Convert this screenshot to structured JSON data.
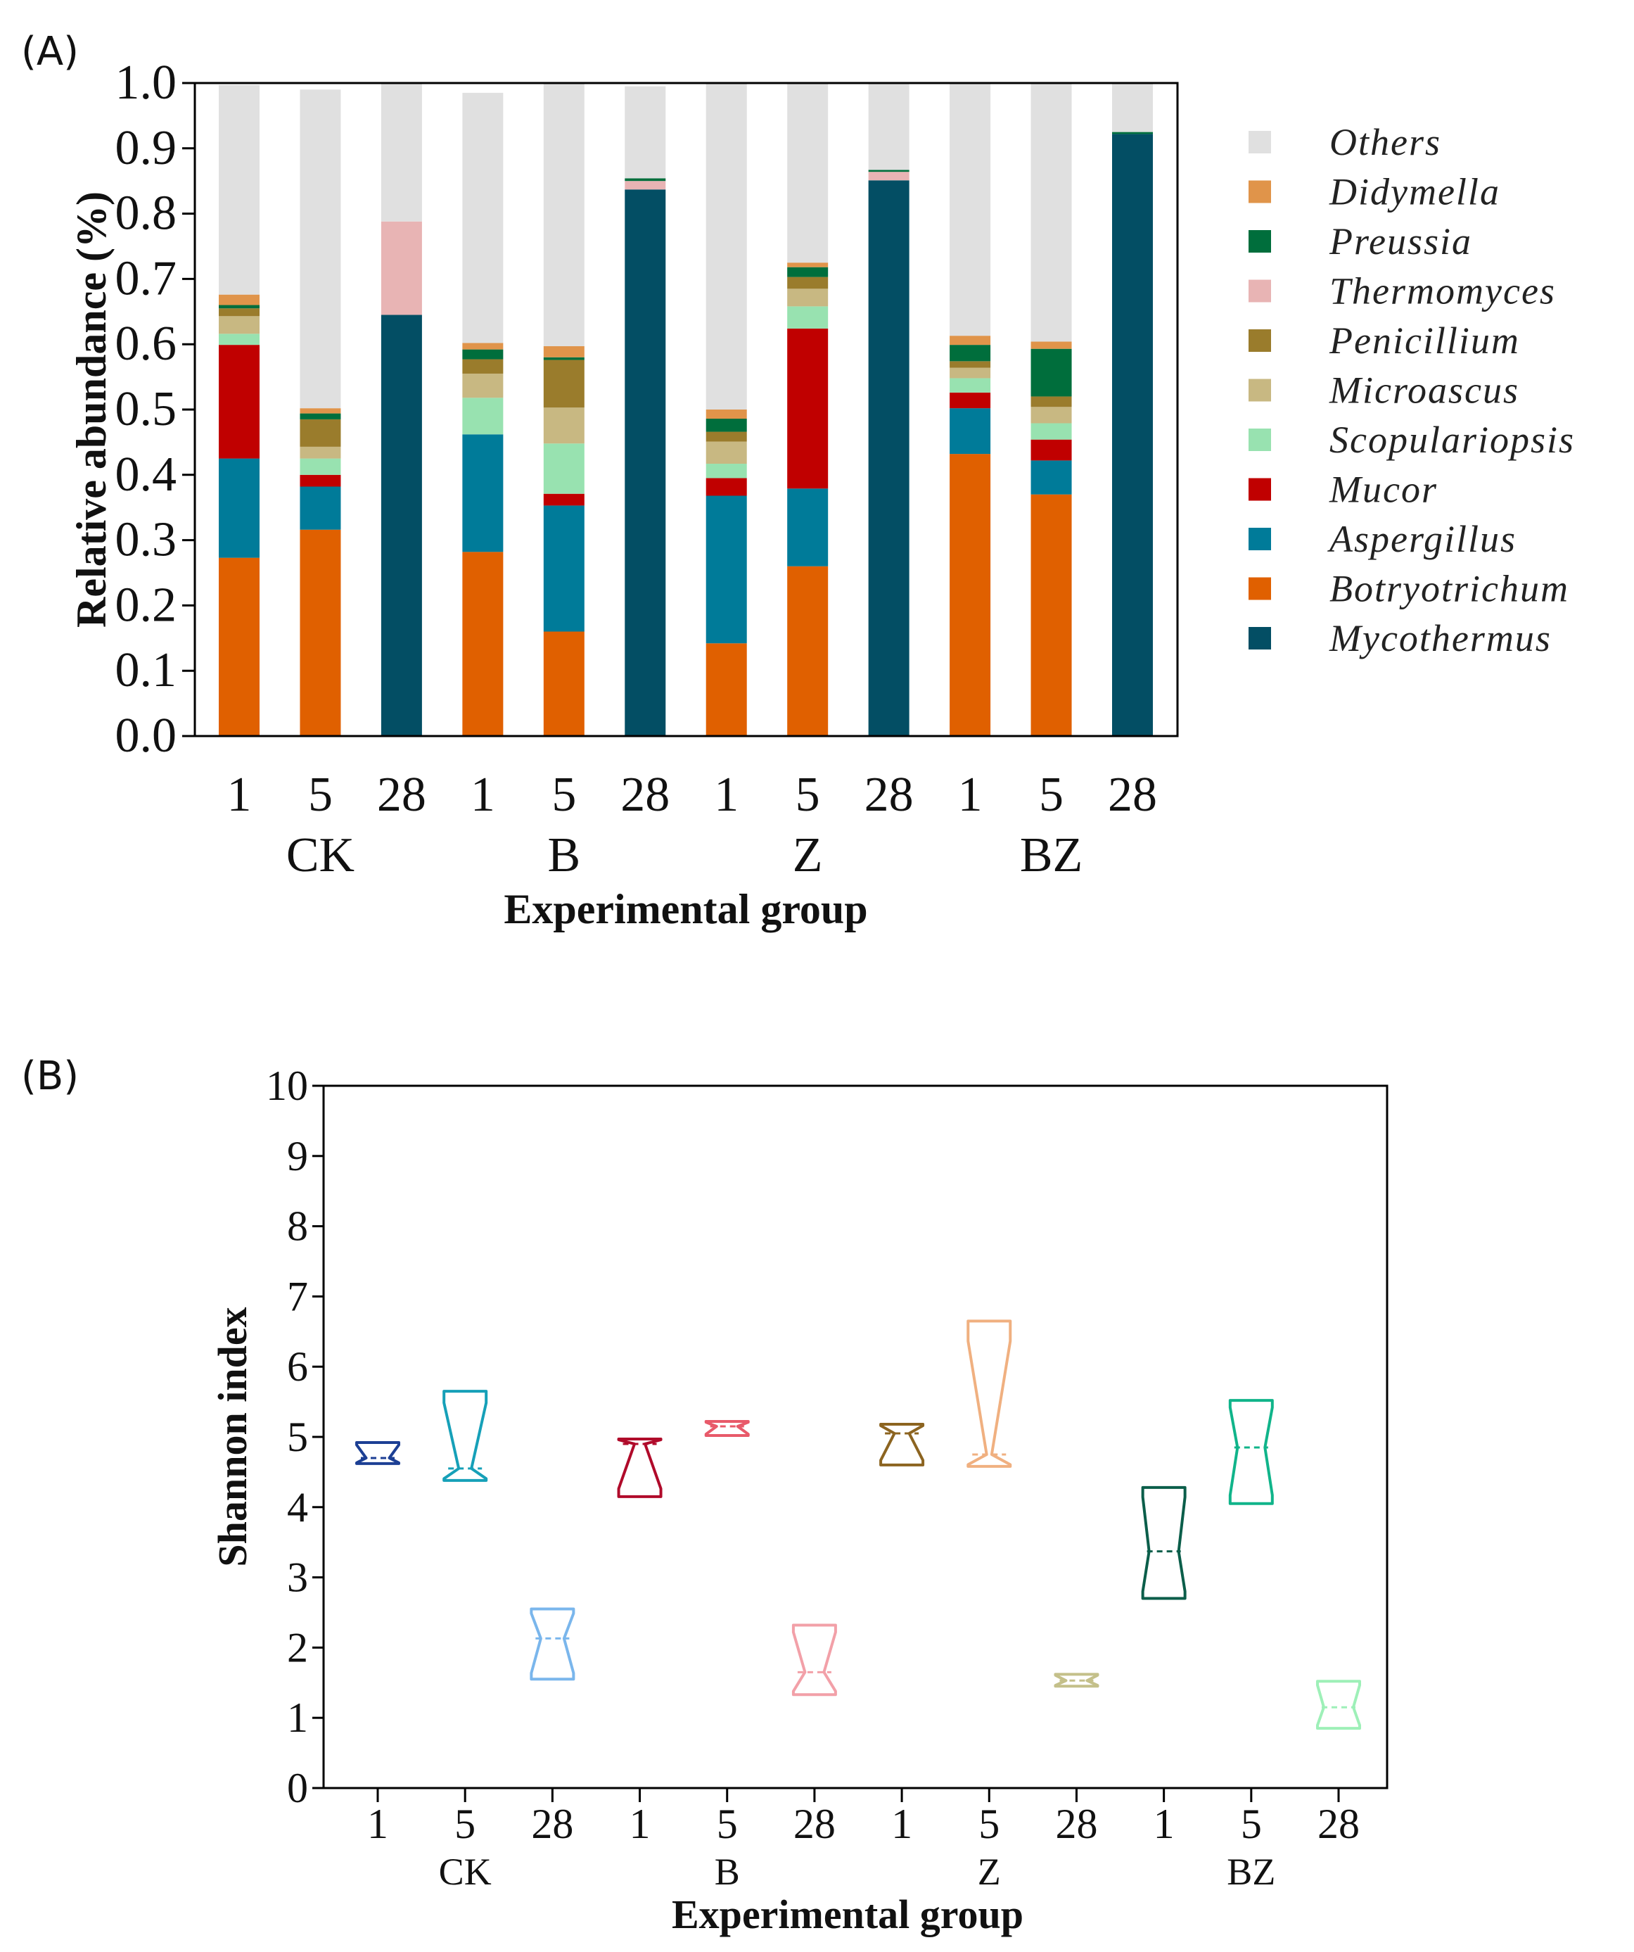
{
  "chart_data": [
    {
      "panel": "(A)",
      "type": "bar",
      "stacked": true,
      "ylabel": "Relative abundance (%)",
      "xlabel": "Experimental group",
      "ylim": [
        0,
        1.0
      ],
      "yticks": [
        "0.0",
        "0.1",
        "0.2",
        "0.3",
        "0.4",
        "0.5",
        "0.6",
        "0.7",
        "0.8",
        "0.9",
        "1.0"
      ],
      "groups": [
        "CK",
        "B",
        "Z",
        "BZ"
      ],
      "days": [
        "1",
        "5",
        "28"
      ],
      "legend_position": "right",
      "series": [
        {
          "name": "Mycothermus",
          "color": "#034e64",
          "values": [
            0,
            0,
            0.645,
            0,
            0,
            0.837,
            0,
            0,
            0.851,
            0,
            0,
            0.922
          ]
        },
        {
          "name": "Botryotrichum",
          "color": "#e06000",
          "values": [
            0.273,
            0.316,
            0,
            0.282,
            0.16,
            0,
            0.142,
            0.26,
            0,
            0.432,
            0.37,
            0
          ]
        },
        {
          "name": "Aspergillus",
          "color": "#007b99",
          "values": [
            0.152,
            0.066,
            0,
            0.18,
            0.193,
            0,
            0.226,
            0.119,
            0,
            0.07,
            0.052,
            0
          ]
        },
        {
          "name": "Mucor",
          "color": "#c00000",
          "values": [
            0.174,
            0.018,
            0,
            0,
            0.018,
            0,
            0.027,
            0.245,
            0,
            0.024,
            0.032,
            0
          ]
        },
        {
          "name": "Scopulariopsis",
          "color": "#98e2b0",
          "values": [
            0.017,
            0.025,
            0,
            0.056,
            0.077,
            0,
            0.022,
            0.034,
            0,
            0.022,
            0.025,
            0
          ]
        },
        {
          "name": "Microascus",
          "color": "#c8b882",
          "values": [
            0.027,
            0.018,
            0,
            0.037,
            0.055,
            0,
            0.034,
            0.027,
            0,
            0.016,
            0.025,
            0
          ]
        },
        {
          "name": "Penicillium",
          "color": "#9a7c2c",
          "values": [
            0.012,
            0.042,
            0,
            0.022,
            0.073,
            0,
            0.015,
            0.018,
            0,
            0.01,
            0.016,
            0
          ]
        },
        {
          "name": "Thermomyces",
          "color": "#e8b4b4",
          "values": [
            0,
            0,
            0.143,
            0,
            0,
            0.013,
            0,
            0,
            0.013,
            0,
            0,
            0
          ]
        },
        {
          "name": "Preussia",
          "color": "#006e3c",
          "values": [
            0.005,
            0.009,
            0,
            0.015,
            0.004,
            0.004,
            0.02,
            0.015,
            0.003,
            0.025,
            0.073,
            0.003
          ]
        },
        {
          "name": "Didymella",
          "color": "#e0944a",
          "values": [
            0.016,
            0.008,
            0,
            0.01,
            0.017,
            0,
            0.014,
            0.007,
            0,
            0.014,
            0.011,
            0
          ]
        },
        {
          "name": "Others",
          "color": "#e0e0e0",
          "values": [
            0.321,
            0.488,
            0.212,
            0.383,
            0.403,
            0.141,
            0.5,
            0.275,
            0.133,
            0.387,
            0.396,
            0.075
          ]
        }
      ],
      "legend_order": [
        "Others",
        "Didymella",
        "Preussia",
        "Thermomyces",
        "Penicillium",
        "Microascus",
        "Scopulariopsis",
        "Mucor",
        "Aspergillus",
        "Botryotrichum",
        "Mycothermus"
      ]
    },
    {
      "panel": "(B)",
      "type": "violin",
      "ylabel": "Shannon index",
      "xlabel": "Experimental group",
      "ylim": [
        0,
        10
      ],
      "yticks": [
        "0",
        "1",
        "2",
        "3",
        "4",
        "5",
        "6",
        "7",
        "8",
        "9",
        "10"
      ],
      "groups": [
        "CK",
        "B",
        "Z",
        "BZ"
      ],
      "days": [
        "1",
        "5",
        "28"
      ],
      "items": [
        {
          "group": "CK",
          "day": "1",
          "color": "#1c3f94",
          "min": 4.62,
          "max": 4.92,
          "median": 4.7,
          "waist": 0.55
        },
        {
          "group": "CK",
          "day": "5",
          "color": "#16a0b8",
          "min": 4.38,
          "max": 5.65,
          "median": 4.55,
          "waist": 0.3
        },
        {
          "group": "CK",
          "day": "28",
          "color": "#7ab6ec",
          "min": 1.55,
          "max": 2.55,
          "median": 2.13,
          "waist": 0.55
        },
        {
          "group": "B",
          "day": "1",
          "color": "#b00a2a",
          "min": 4.15,
          "max": 4.97,
          "median": 4.9,
          "waist": 0.25
        },
        {
          "group": "B",
          "day": "5",
          "color": "#e85a6a",
          "min": 5.02,
          "max": 5.22,
          "median": 5.15,
          "waist": 0.5
        },
        {
          "group": "B",
          "day": "28",
          "color": "#f2a0a8",
          "min": 1.33,
          "max": 2.32,
          "median": 1.65,
          "waist": 0.45
        },
        {
          "group": "Z",
          "day": "1",
          "color": "#8c6420",
          "min": 4.6,
          "max": 5.18,
          "median": 5.05,
          "waist": 0.35
        },
        {
          "group": "Z",
          "day": "5",
          "color": "#f0b080",
          "min": 4.58,
          "max": 6.65,
          "median": 4.75,
          "waist": 0.12
        },
        {
          "group": "Z",
          "day": "28",
          "color": "#c4c08a",
          "min": 1.45,
          "max": 1.62,
          "median": 1.53,
          "waist": 0.5
        },
        {
          "group": "BZ",
          "day": "1",
          "color": "#0b5e4a",
          "min": 2.7,
          "max": 4.28,
          "median": 3.37,
          "waist": 0.7
        },
        {
          "group": "BZ",
          "day": "5",
          "color": "#10b48a",
          "min": 4.05,
          "max": 5.52,
          "median": 4.85,
          "waist": 0.65
        },
        {
          "group": "BZ",
          "day": "28",
          "color": "#9ef0b8",
          "min": 0.85,
          "max": 1.52,
          "median": 1.15,
          "waist": 0.7
        }
      ]
    }
  ]
}
